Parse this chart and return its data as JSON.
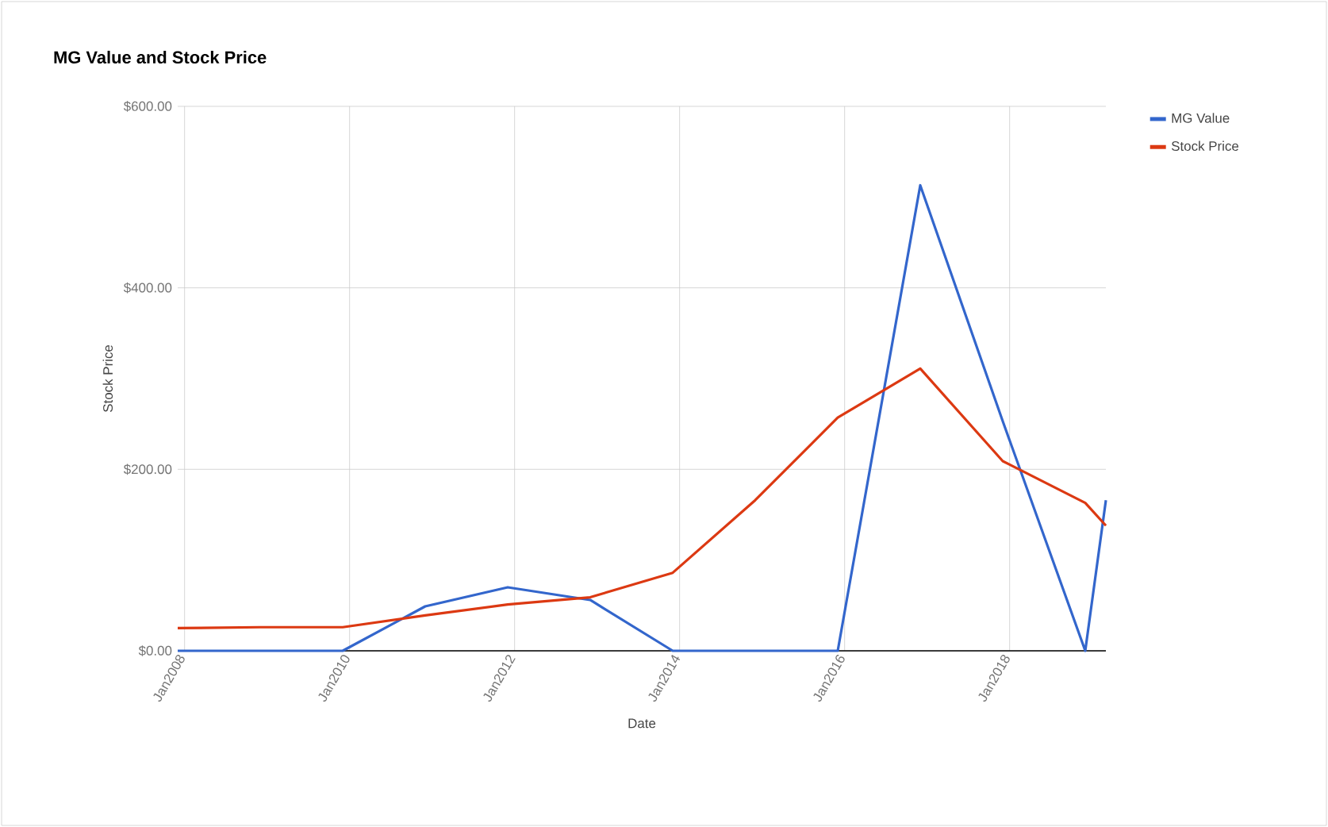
{
  "chart_data": {
    "type": "line",
    "title": "MG Value and Stock Price",
    "xlabel": "Date",
    "ylabel": "Stock Price",
    "x": [
      "2007-12",
      "2008-12",
      "2009-12",
      "2010-12",
      "2011-12",
      "2012-12",
      "2013-12",
      "2014-12",
      "2015-12",
      "2016-12",
      "2017-12",
      "2018-12",
      "2019-03"
    ],
    "series": [
      {
        "name": "MG Value",
        "color": "#3366cc",
        "values": [
          0,
          0,
          0,
          49,
          70,
          56,
          0,
          0,
          0,
          513,
          253,
          0,
          166
        ]
      },
      {
        "name": "Stock Price",
        "color": "#dc3912",
        "values": [
          25,
          26,
          26,
          39,
          51,
          59,
          86,
          166,
          257,
          311,
          209,
          163,
          138
        ]
      }
    ],
    "xlim": [
      "2007-12",
      "2019-03"
    ],
    "xticks": [
      {
        "value": "2008-01",
        "label": "Jan2008"
      },
      {
        "value": "2010-01",
        "label": "Jan2010"
      },
      {
        "value": "2012-01",
        "label": "Jan2012"
      },
      {
        "value": "2014-01",
        "label": "Jan2014"
      },
      {
        "value": "2016-01",
        "label": "Jan2016"
      },
      {
        "value": "2018-01",
        "label": "Jan2018"
      }
    ],
    "ylim": [
      0,
      600
    ],
    "yticks": [
      {
        "value": 0,
        "label": "$0.00"
      },
      {
        "value": 200,
        "label": "$200.00"
      },
      {
        "value": 400,
        "label": "$400.00"
      },
      {
        "value": 600,
        "label": "$600.00"
      }
    ],
    "grid": true,
    "legend": "top right",
    "marker": "none",
    "line_style": "solid"
  }
}
